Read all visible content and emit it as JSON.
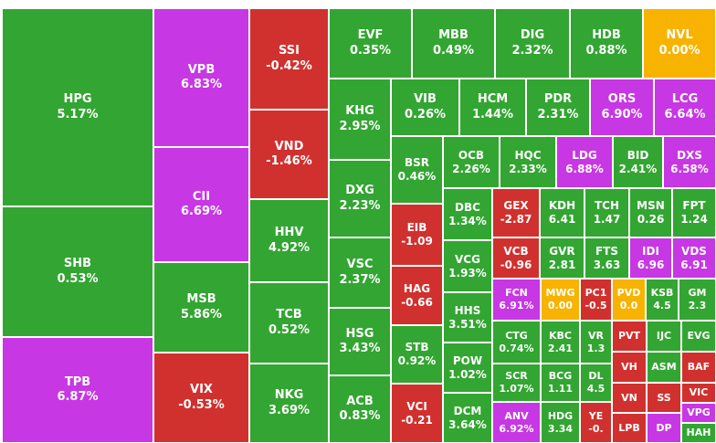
{
  "colors": {
    "up": "#33a532",
    "down": "#d0312e",
    "ceiling": "#c737e3",
    "ref": "#f7b300"
  },
  "cells": [
    {
      "t": "HPG",
      "v": "5.17%",
      "s": "up"
    },
    {
      "t": "SHB",
      "v": "0.53%",
      "s": "up"
    },
    {
      "t": "TPB",
      "v": "6.87%",
      "s": "ceiling"
    },
    {
      "t": "VPB",
      "v": "6.83%",
      "s": "ceiling"
    },
    {
      "t": "CII",
      "v": "6.69%",
      "s": "ceiling"
    },
    {
      "t": "MSB",
      "v": "5.86%",
      "s": "up"
    },
    {
      "t": "VIX",
      "v": "-0.53%",
      "s": "down"
    },
    {
      "t": "SSI",
      "v": "-0.42%",
      "s": "down"
    },
    {
      "t": "VND",
      "v": "-1.46%",
      "s": "down"
    },
    {
      "t": "HHV",
      "v": "4.92%",
      "s": "up"
    },
    {
      "t": "TCB",
      "v": "0.52%",
      "s": "up"
    },
    {
      "t": "NKG",
      "v": "3.69%",
      "s": "up"
    },
    {
      "t": "EVF",
      "v": "0.35%",
      "s": "up"
    },
    {
      "t": "MBB",
      "v": "0.49%",
      "s": "up"
    },
    {
      "t": "DIG",
      "v": "2.32%",
      "s": "up"
    },
    {
      "t": "HDB",
      "v": "0.88%",
      "s": "up"
    },
    {
      "t": "NVL",
      "v": "0.00%",
      "s": "ref"
    },
    {
      "t": "KHG",
      "v": "2.95%",
      "s": "up"
    },
    {
      "t": "DXG",
      "v": "2.23%",
      "s": "up"
    },
    {
      "t": "VSC",
      "v": "2.37%",
      "s": "up"
    },
    {
      "t": "HSG",
      "v": "3.43%",
      "s": "up"
    },
    {
      "t": "ACB",
      "v": "0.83%",
      "s": "up"
    },
    {
      "t": "VIB",
      "v": "0.26%",
      "s": "up"
    },
    {
      "t": "HCM",
      "v": "1.44%",
      "s": "up"
    },
    {
      "t": "PDR",
      "v": "2.31%",
      "s": "up"
    },
    {
      "t": "ORS",
      "v": "6.90%",
      "s": "ceiling"
    },
    {
      "t": "LCG",
      "v": "6.64%",
      "s": "ceiling"
    },
    {
      "t": "BSR",
      "v": "0.46%",
      "s": "up"
    },
    {
      "t": "OCB",
      "v": "2.26%",
      "s": "up"
    },
    {
      "t": "HQC",
      "v": "2.33%",
      "s": "up"
    },
    {
      "t": "LDG",
      "v": "6.88%",
      "s": "ceiling"
    },
    {
      "t": "BID",
      "v": "2.41%",
      "s": "up"
    },
    {
      "t": "DXS",
      "v": "6.58%",
      "s": "ceiling"
    },
    {
      "t": "EIB",
      "v": "-1.09",
      "s": "down"
    },
    {
      "t": "HAG",
      "v": "-0.66",
      "s": "down"
    },
    {
      "t": "STB",
      "v": "0.92%",
      "s": "up"
    },
    {
      "t": "VCI",
      "v": "-0.21",
      "s": "down"
    },
    {
      "t": "DBC",
      "v": "1.34%",
      "s": "up"
    },
    {
      "t": "VCG",
      "v": "1.93%",
      "s": "up"
    },
    {
      "t": "HHS",
      "v": "3.51%",
      "s": "up"
    },
    {
      "t": "POW",
      "v": "1.02%",
      "s": "up"
    },
    {
      "t": "DCM",
      "v": "3.64%",
      "s": "up"
    },
    {
      "t": "GEX",
      "v": "-2.87",
      "s": "down"
    },
    {
      "t": "KDH",
      "v": "6.41",
      "s": "up"
    },
    {
      "t": "TCH",
      "v": "1.47",
      "s": "up"
    },
    {
      "t": "MSN",
      "v": "0.26",
      "s": "up"
    },
    {
      "t": "FPT",
      "v": "1.24",
      "s": "up"
    },
    {
      "t": "VCB",
      "v": "-0.96",
      "s": "down"
    },
    {
      "t": "GVR",
      "v": "2.81",
      "s": "up"
    },
    {
      "t": "FTS",
      "v": "3.63",
      "s": "up"
    },
    {
      "t": "IDI",
      "v": "6.96",
      "s": "ceiling"
    },
    {
      "t": "VDS",
      "v": "6.91",
      "s": "ceiling"
    },
    {
      "t": "FCN",
      "v": "6.91%",
      "s": "ceiling"
    },
    {
      "t": "MWG",
      "v": "0.00",
      "s": "ref"
    },
    {
      "t": "PC1",
      "v": "-0.5",
      "s": "down"
    },
    {
      "t": "PVD",
      "v": "0.0",
      "s": "ref"
    },
    {
      "t": "KSB",
      "v": "4.5",
      "s": "up"
    },
    {
      "t": "GM",
      "v": "2.3",
      "s": "up"
    },
    {
      "t": "CTG",
      "v": "0.74%",
      "s": "up"
    },
    {
      "t": "KBC",
      "v": "2.41",
      "s": "up"
    },
    {
      "t": "VR",
      "v": "1.3",
      "s": "up"
    },
    {
      "t": "PVT",
      "v": "",
      "s": "down"
    },
    {
      "t": "IJC",
      "v": "",
      "s": "up"
    },
    {
      "t": "EVG",
      "v": "",
      "s": "up"
    },
    {
      "t": "SCR",
      "v": "1.07%",
      "s": "up"
    },
    {
      "t": "BCG",
      "v": "1.11",
      "s": "up"
    },
    {
      "t": "DL",
      "v": "4.5",
      "s": "up"
    },
    {
      "t": "VH",
      "v": "",
      "s": "down"
    },
    {
      "t": "ASM",
      "v": "",
      "s": "up"
    },
    {
      "t": "BAF",
      "v": "",
      "s": "down"
    },
    {
      "t": "ANV",
      "v": "6.92%",
      "s": "ceiling"
    },
    {
      "t": "HDG",
      "v": "3.34",
      "s": "up"
    },
    {
      "t": "YE",
      "v": "-0.",
      "s": "down"
    },
    {
      "t": "VN",
      "v": "",
      "s": "down"
    },
    {
      "t": "SS",
      "v": "",
      "s": "down"
    },
    {
      "t": "VIC",
      "v": "",
      "s": "down"
    },
    {
      "t": "VPG",
      "v": "",
      "s": "ceiling"
    },
    {
      "t": "LPB",
      "v": "",
      "s": "down"
    },
    {
      "t": "DP",
      "v": "",
      "s": "ceiling"
    },
    {
      "t": "HAH",
      "v": "",
      "s": "up"
    }
  ]
}
